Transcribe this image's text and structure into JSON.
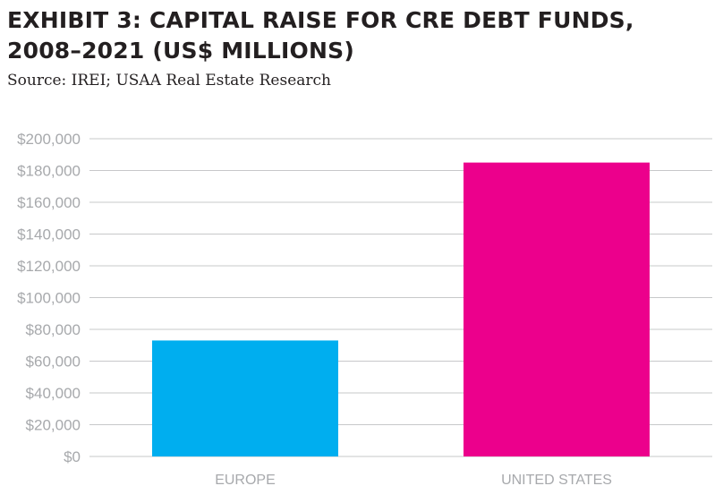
{
  "header": {
    "title_line1": "EXHIBIT 3: CAPITAL RAISE FOR CRE DEBT FUNDS,",
    "title_line2": "2008–2021 (US$ MILLIONS)",
    "source": "Source: IREI; USAA Real Estate Research"
  },
  "chart_data": {
    "type": "bar",
    "title": "EXHIBIT 3: CAPITAL RAISE FOR CRE DEBT FUNDS, 2008–2021 (US$ MILLIONS)",
    "categories": [
      "EUROPE",
      "UNITED STATES"
    ],
    "values": [
      73000,
      185000
    ],
    "bar_colors": [
      "#00aeef",
      "#ec008c"
    ],
    "ylim": [
      0,
      200000
    ],
    "yticks": [
      0,
      20000,
      40000,
      60000,
      80000,
      100000,
      120000,
      140000,
      160000,
      180000,
      200000
    ],
    "ytick_labels": [
      "$0",
      "$20,000",
      "$40,000",
      "$60,000",
      "$80,000",
      "$100,000",
      "$120,000",
      "$140,000",
      "$160,000",
      "$180,000",
      "$200,000"
    ],
    "grid": true,
    "gridline_color": "#c7c8ca",
    "legend": "none"
  }
}
